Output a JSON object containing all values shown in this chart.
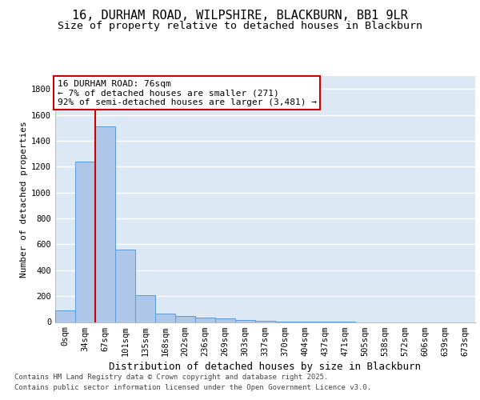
{
  "title_line1": "16, DURHAM ROAD, WILPSHIRE, BLACKBURN, BB1 9LR",
  "title_line2": "Size of property relative to detached houses in Blackburn",
  "xlabel": "Distribution of detached houses by size in Blackburn",
  "ylabel": "Number of detached properties",
  "categories": [
    "0sqm",
    "34sqm",
    "67sqm",
    "101sqm",
    "135sqm",
    "168sqm",
    "202sqm",
    "236sqm",
    "269sqm",
    "303sqm",
    "337sqm",
    "370sqm",
    "404sqm",
    "437sqm",
    "471sqm",
    "505sqm",
    "538sqm",
    "572sqm",
    "606sqm",
    "639sqm",
    "673sqm"
  ],
  "values": [
    90,
    1240,
    1510,
    560,
    210,
    65,
    45,
    35,
    25,
    15,
    8,
    4,
    2,
    1,
    1,
    0,
    0,
    0,
    0,
    0,
    0
  ],
  "bar_color": "#aec6e8",
  "bar_edge_color": "#5b9bd5",
  "ylim_max": 1900,
  "yticks": [
    0,
    200,
    400,
    600,
    800,
    1000,
    1200,
    1400,
    1600,
    1800
  ],
  "vline_x": 1.5,
  "vline_color": "#cc0000",
  "annotation_line1": "16 DURHAM ROAD: 76sqm",
  "annotation_line2": "← 7% of detached houses are smaller (271)",
  "annotation_line3": "92% of semi-detached houses are larger (3,481) →",
  "bg_color": "#dce9f5",
  "grid_color": "#ffffff",
  "footer_line1": "Contains HM Land Registry data © Crown copyright and database right 2025.",
  "footer_line2": "Contains public sector information licensed under the Open Government Licence v3.0.",
  "title_fontsize": 11,
  "subtitle_fontsize": 9.5,
  "ylabel_fontsize": 8,
  "xlabel_fontsize": 9,
  "tick_fontsize": 7.5,
  "annot_fontsize": 8,
  "footer_fontsize": 6.5
}
